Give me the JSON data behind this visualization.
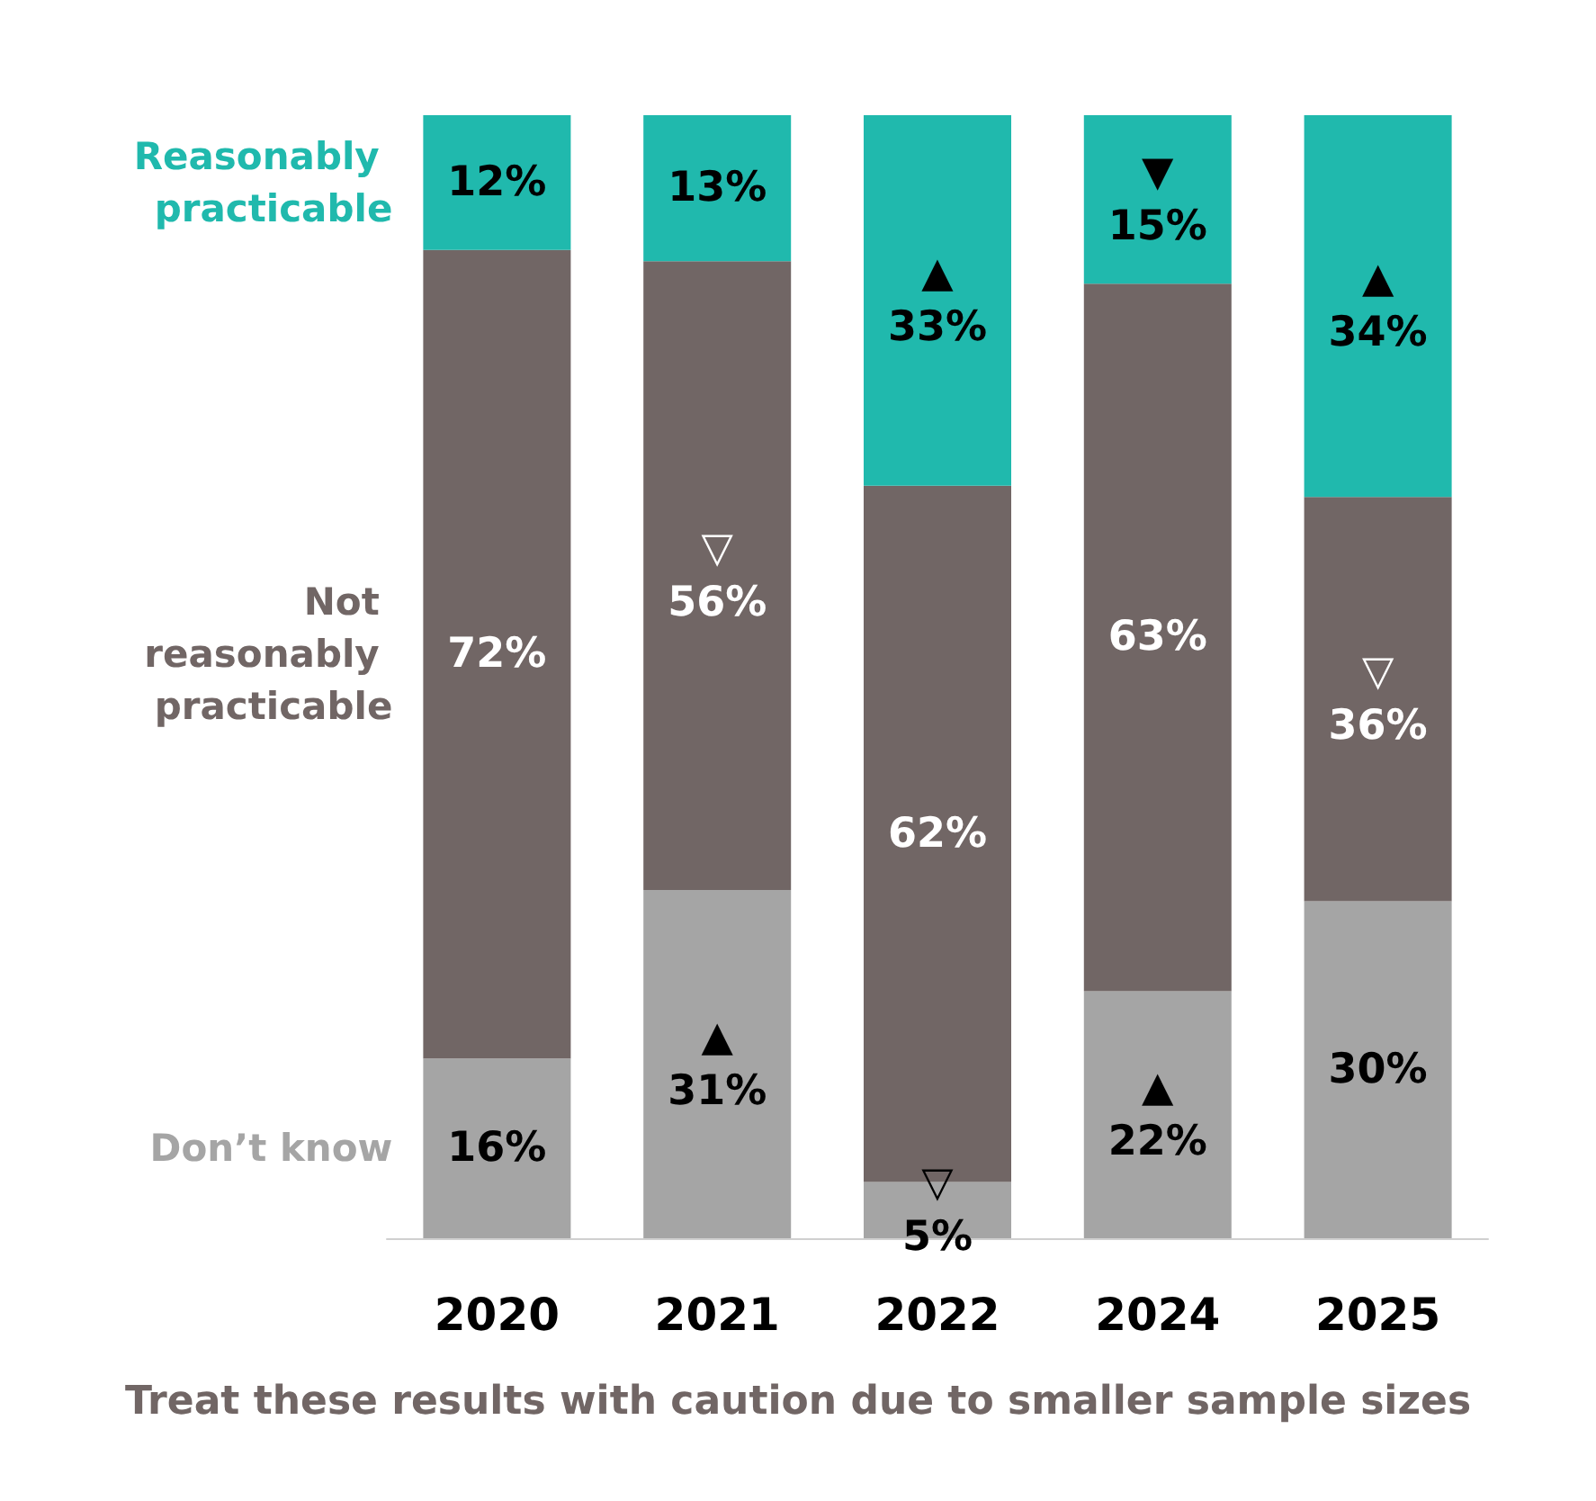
{
  "chart_data": {
    "type": "bar",
    "stacked": true,
    "legend": false,
    "categories": [
      "2020",
      "2021",
      "2022",
      "2024",
      "2025"
    ],
    "series": [
      {
        "name": "Don’t know",
        "color": "#a5a5a5",
        "values": [
          16,
          31,
          5,
          22,
          30
        ],
        "value_labels": [
          "16%",
          "▲\n31%",
          "▽\n5%",
          "▲\n22%",
          "30%"
        ]
      },
      {
        "name": "Not reasonably practicable",
        "color": "#716665",
        "values": [
          72,
          56,
          62,
          63,
          36
        ],
        "value_labels": [
          "72%",
          "▽\n56%",
          "62%",
          "63%",
          "▽\n36%"
        ]
      },
      {
        "name": "Reasonably practicable",
        "color": "#20b9ad",
        "values": [
          12,
          13,
          33,
          15,
          34
        ],
        "value_labels": [
          "12%",
          "13%",
          "▲\n33%",
          "▼\n15%",
          "▲\n34%"
        ]
      }
    ],
    "annotations": [
      "Treat these results with caution due to smaller sample sizes"
    ]
  }
}
